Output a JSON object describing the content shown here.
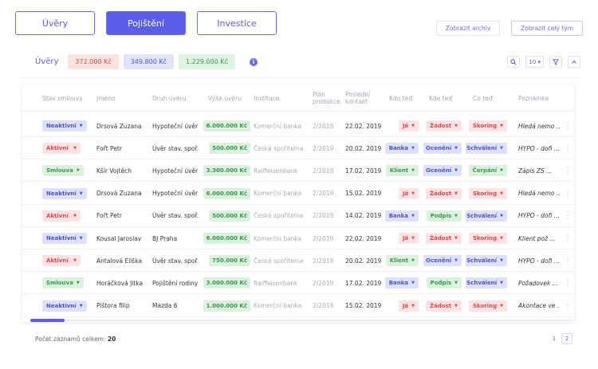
{
  "tabs": [
    {
      "label": "Úvěry",
      "active": false
    },
    {
      "label": "Pojištění",
      "active": true
    },
    {
      "label": "Investice",
      "active": false
    }
  ],
  "top_buttons": {
    "archive": "Zobrazit archiv",
    "team": "Zobrazit celý tým"
  },
  "summary": {
    "label": "Úvěry",
    "red": "372.000 Kč",
    "blue": "349.800 Kč",
    "green": "1.229.000 Kč",
    "info_icon": "info-icon"
  },
  "tools": {
    "page_size": "10 ▾",
    "search_icon": "search-icon",
    "filter_icon": "filter-icon",
    "collapse_icon": "chevron-up-icon"
  },
  "columns": [
    "Stav smlouvy",
    "Jméno",
    "Druh úvěru",
    "Výše úvěru",
    "Instituce",
    "Plán produkce",
    "Poslední kontakt",
    "Kdo teď",
    "Kde teď",
    "Co teď",
    "Poznámka"
  ],
  "rows": [
    {
      "status": "Neaktivní",
      "status_color": "blue",
      "name": "Drsová Zuzana",
      "type": "Hypoteční úvěr",
      "amount": "6.000.000 Kč",
      "institution": "Komerční banka",
      "plan": "2/2019",
      "contact": "22.02. 2019",
      "who": "Já",
      "who_color": "red",
      "where": "Žádost",
      "where_color": "red",
      "what": "Skoring",
      "what_color": "red",
      "note": "Hledá nemo ..."
    },
    {
      "status": "Aktivní",
      "status_color": "red",
      "name": "Fořt Petr",
      "type": "Úvěr stav. spoř.",
      "amount": "500.000 Kč",
      "institution": "Česká spořitelna",
      "plan": "2/2019",
      "contact": "20.02. 2019",
      "who": "Banka",
      "who_color": "blue",
      "where": "Ocenění",
      "where_color": "blue",
      "what": "Schválení",
      "what_color": "blue",
      "note": "HYPO - dofi ..."
    },
    {
      "status": "Smlouva",
      "status_color": "green",
      "name": "Kšír Vojtěch",
      "type": "Hypoteční úvěr",
      "amount": "3.300.000 Kč",
      "institution": "Raiffeisenbank",
      "plan": "2/2019",
      "contact": "17.02. 2019",
      "who": "Klient",
      "who_color": "green",
      "where": "Ocenění",
      "where_color": "blue",
      "what": "Čerpání",
      "what_color": "green",
      "note": "Zápis ZS ..."
    },
    {
      "status": "Neaktivní",
      "status_color": "blue",
      "name": "Drsová Zuzana",
      "type": "Hypoteční úvěr",
      "amount": "6.000.000 Kč",
      "institution": "Komerční banka",
      "plan": "2/2019",
      "contact": "15.02. 2019",
      "who": "Já",
      "who_color": "red",
      "where": "Žádost",
      "where_color": "red",
      "what": "Skoring",
      "what_color": "red",
      "note": "Hledá nemo ..."
    },
    {
      "status": "Aktivní",
      "status_color": "red",
      "name": "Fořt Petr",
      "type": "Úvěr stav. spoř.",
      "amount": "500.000 Kč",
      "institution": "Česká spořitelna",
      "plan": "2/2019",
      "contact": "14.02. 2019",
      "who": "Banka",
      "who_color": "blue",
      "where": "Podpis",
      "where_color": "green",
      "what": "Schválení",
      "what_color": "blue",
      "note": "HYPO - dofi ..."
    },
    {
      "status": "Neaktivní",
      "status_color": "blue",
      "name": "Kousal Jaroslav",
      "type": "BJ Praha",
      "amount": "6.000.000 Kč",
      "institution": "Komerční banka",
      "plan": "2/2019",
      "contact": "22.02. 2019",
      "who": "Já",
      "who_color": "red",
      "where": "Žádost",
      "where_color": "red",
      "what": "Skoring",
      "what_color": "red",
      "note": "Klient pož ..."
    },
    {
      "status": "Aktivní",
      "status_color": "red",
      "name": "Antalová Eliška",
      "type": "Úvěr stav. spoř.",
      "amount": "750.000 Kč",
      "institution": "Česká spořitelna",
      "plan": "2/2019",
      "contact": "20.02. 2019",
      "who": "Klient",
      "who_color": "green",
      "where": "Ocenění",
      "where_color": "blue",
      "what": "Schválení",
      "what_color": "blue",
      "note": "HYPO - dofi ..."
    },
    {
      "status": "Smlouva",
      "status_color": "green",
      "name": "Horáčková Jitka",
      "type": "Pojištění rodiny",
      "amount": "3.000.000 Kč",
      "institution": "Raiffeisenbank",
      "plan": "2/2019",
      "contact": "17.02. 2019",
      "who": "Banka",
      "who_color": "blue",
      "where": "Podpis",
      "where_color": "green",
      "what": "Schválení",
      "what_color": "blue",
      "note": "Požadovek ..."
    },
    {
      "status": "Neaktivní",
      "status_color": "blue",
      "name": "Pištora filip",
      "type": "Mazda 6",
      "amount": "1.000.000 Kč",
      "institution": "Komerční banka",
      "plan": "2/2019",
      "contact": "15.02. 2019",
      "who": "Já",
      "who_color": "red",
      "where": "Žádost",
      "where_color": "red",
      "what": "Skoring",
      "what_color": "red",
      "note": "Akontace ve ..."
    }
  ],
  "footer": {
    "count_label": "Počet záznamů celkem:",
    "count": "20"
  },
  "pagination": [
    "1",
    "2"
  ],
  "colors": {
    "accent": "#5b5ee8",
    "red_bg": "#fde3e3",
    "blue_bg": "#dde1fb",
    "green_bg": "#dcf2df"
  }
}
